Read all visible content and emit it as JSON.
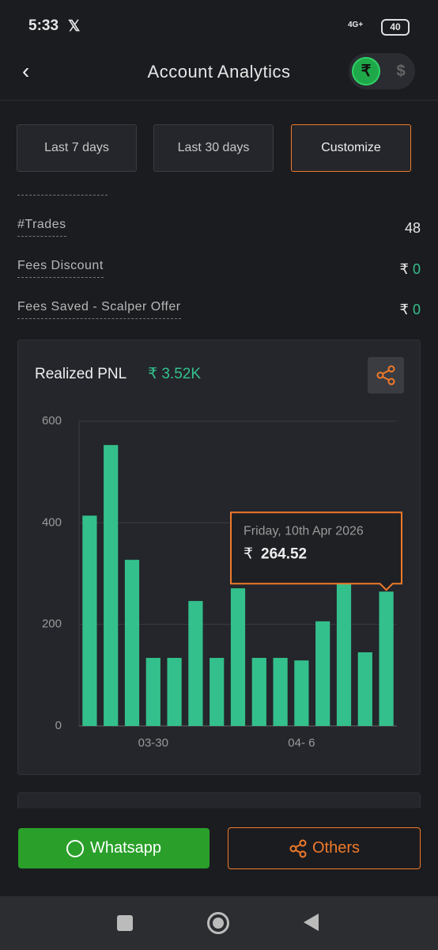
{
  "status": {
    "time": "5:33",
    "network": "4G+",
    "battery": "40"
  },
  "header": {
    "title": "Account Analytics",
    "currency_rupee": "₹",
    "currency_dollar": "$"
  },
  "filters": [
    "Last 7 days",
    "Last 30 days",
    "Customize"
  ],
  "stats": [
    {
      "label": "#Trades",
      "value": 48
    },
    {
      "label": "Fees Discount",
      "currency": "₹",
      "value": 0
    },
    {
      "label": "Fees Saved - Scalper Offer",
      "currency": "₹",
      "value": 0
    }
  ],
  "chart_data": {
    "type": "bar",
    "title": "Realized PNL",
    "total_label": "₹ 3.52K",
    "categories": [
      null,
      null,
      null,
      "03-30",
      null,
      null,
      null,
      null,
      null,
      null,
      "04- 6",
      null,
      null,
      null,
      null
    ],
    "values": [
      414,
      553,
      327,
      134,
      134,
      246,
      134,
      271,
      134,
      134,
      129,
      206,
      280,
      145,
      264.52
    ],
    "color": "#34c08c",
    "ylim": [
      0,
      600
    ],
    "yticks": [
      0,
      200,
      400,
      600
    ],
    "grid": true,
    "tooltip": {
      "title": "Friday, 10th Apr 2026",
      "currency": "₹"
    }
  },
  "share": {
    "whatsapp": "Whatsapp",
    "others": "Others"
  }
}
